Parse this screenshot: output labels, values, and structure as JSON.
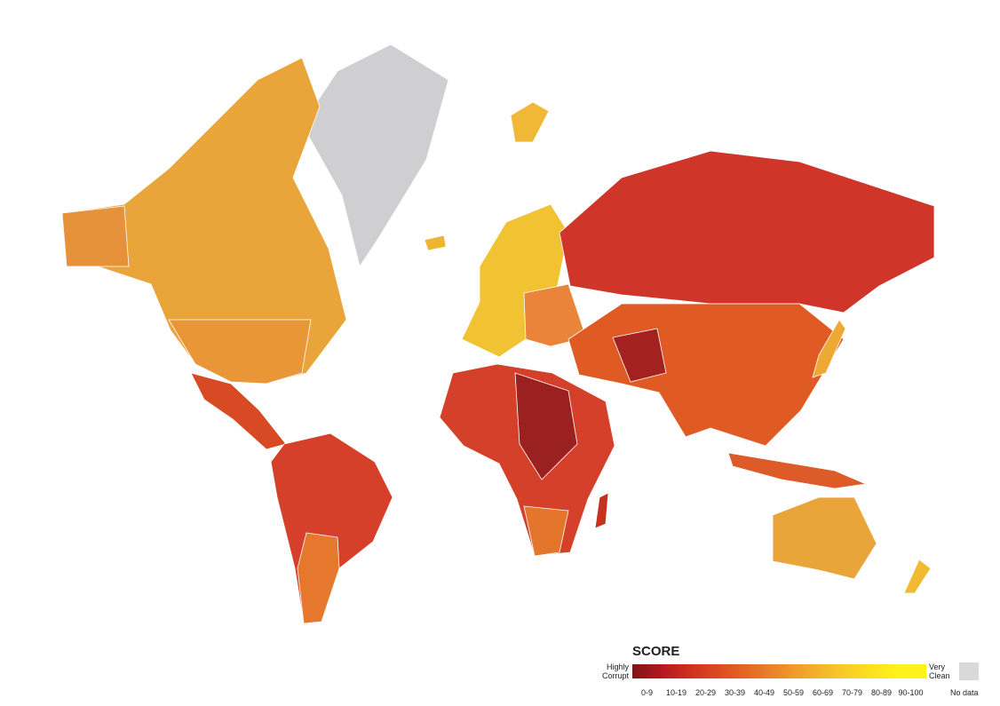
{
  "legend": {
    "title": "SCORE",
    "low_label": "Highly Corrupt",
    "high_label": "Very Clean",
    "bins": [
      {
        "label": "0-9",
        "color": "#7e1416"
      },
      {
        "label": "10-19",
        "color": "#b3191f"
      },
      {
        "label": "20-29",
        "color": "#d1311f"
      },
      {
        "label": "30-39",
        "color": "#dc4d22"
      },
      {
        "label": "40-49",
        "color": "#e56b25"
      },
      {
        "label": "50-59",
        "color": "#ec8a2a"
      },
      {
        "label": "60-69",
        "color": "#f2a92c"
      },
      {
        "label": "70-79",
        "color": "#f7c52a"
      },
      {
        "label": "80-89",
        "color": "#fbdf1f"
      },
      {
        "label": "90-100",
        "color": "#fff21a"
      }
    ],
    "no_data": {
      "label": "No data",
      "color": "#d9d9db"
    }
  }
}
